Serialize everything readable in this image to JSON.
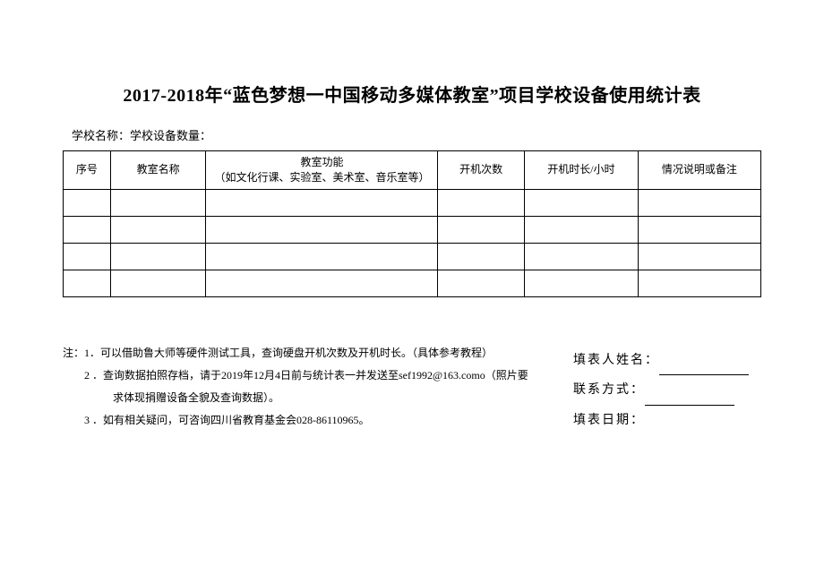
{
  "title": "2017-2018年“蓝色梦想一中国移动多媒体教室”项目学校设备使用统计表",
  "subheader": "学校名称：学校设备数量：",
  "table": {
    "columns": [
      "序号",
      "教室名称",
      "教室功能\n（如文化行课、实验室、美术室、音乐室等）",
      "开机次数",
      "开机时长/小时",
      "情况说明或备注"
    ],
    "row_count": 4
  },
  "notes": {
    "prefix": "注：",
    "items": [
      "1．可以借助鲁大师等硬件测试工具，查询硬盘开机次数及开机时长。（具体参考教程）",
      "2 ．查询数据拍照存档，请于2019年12月4日前与统计表一并发送至sef1992@163.como（照片要",
      "求体现捐赠设备全貌及查询数据）。",
      "3 ．如有相关疑问，可咨询四川省教育基金会028-86110965。"
    ]
  },
  "signatures": {
    "name_label": "填表人姓名：",
    "contact_label": "联系方式：",
    "date_label": "填表日期："
  },
  "colors": {
    "background": "#ffffff",
    "text": "#000000",
    "border": "#000000"
  }
}
